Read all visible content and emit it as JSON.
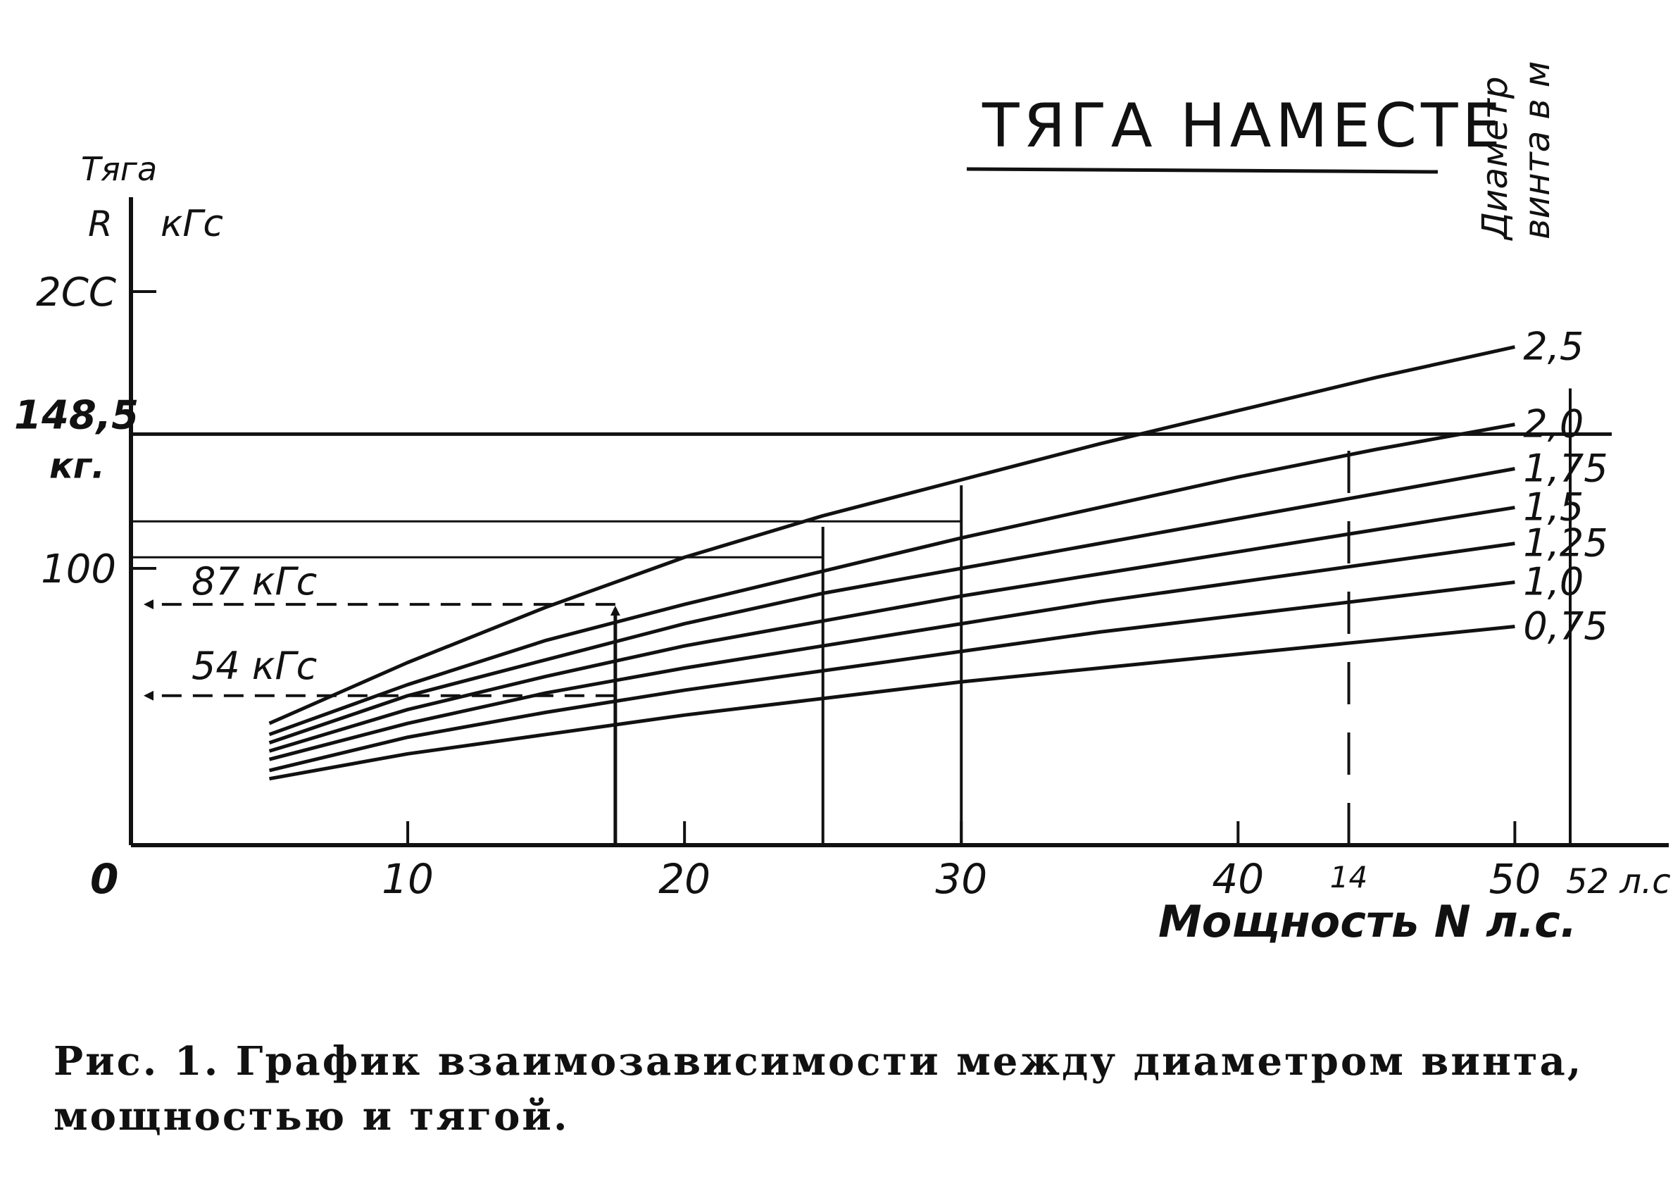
{
  "chart_data": {
    "type": "line",
    "title": "ТЯГА НАМЕСТЕ",
    "y_axis": {
      "label_line1": "Тяга",
      "label_r": "R",
      "unit": "кГс",
      "range": [
        0,
        200
      ],
      "ticks": [
        {
          "value": 100,
          "label": "100"
        },
        {
          "value": 200,
          "label": "2СС"
        }
      ]
    },
    "x_axis": {
      "label": "Мощность N л.с.",
      "range": [
        0,
        52
      ],
      "origin_label": "0",
      "ticks": [
        {
          "value": 10,
          "label": "10"
        },
        {
          "value": 20,
          "label": "20"
        },
        {
          "value": 30,
          "label": "30"
        },
        {
          "value": 40,
          "label": "40"
        },
        {
          "value": 50,
          "label": "50"
        },
        {
          "value": 52,
          "label": "52 л.с"
        }
      ],
      "extra_label": {
        "value": 44,
        "label": "14"
      }
    },
    "legend_title": [
      "Диаметр",
      "винта в м"
    ],
    "series": [
      {
        "name": "2,5",
        "x": [
          5,
          10,
          15,
          20,
          25,
          30,
          35,
          40,
          45,
          50
        ],
        "y": [
          44,
          66,
          86,
          104,
          119,
          132,
          145,
          157,
          169,
          180
        ]
      },
      {
        "name": "2,0",
        "x": [
          5,
          10,
          15,
          20,
          25,
          30,
          35,
          40,
          45,
          50
        ],
        "y": [
          40,
          58,
          74,
          87,
          99,
          111,
          122,
          133,
          143,
          152
        ]
      },
      {
        "name": "1,75",
        "x": [
          5,
          10,
          15,
          20,
          25,
          30,
          35,
          40,
          45,
          50
        ],
        "y": [
          37,
          54,
          67,
          80,
          91,
          100,
          109,
          118,
          127,
          136
        ]
      },
      {
        "name": "1,5",
        "x": [
          5,
          10,
          15,
          20,
          25,
          30,
          35,
          40,
          45,
          50
        ],
        "y": [
          34,
          49,
          61,
          72,
          81,
          90,
          98,
          106,
          114,
          122
        ]
      },
      {
        "name": "1,25",
        "x": [
          5,
          10,
          15,
          20,
          25,
          30,
          35,
          40,
          45,
          50
        ],
        "y": [
          31,
          44,
          55,
          64,
          72,
          80,
          88,
          95,
          102,
          109
        ]
      },
      {
        "name": "1,0",
        "x": [
          5,
          10,
          15,
          20,
          25,
          30,
          35,
          40,
          45,
          50
        ],
        "y": [
          27,
          39,
          48,
          56,
          63,
          70,
          77,
          83,
          89,
          95
        ]
      },
      {
        "name": "0,75",
        "x": [
          5,
          10,
          15,
          20,
          25,
          30,
          35,
          40,
          45,
          50
        ],
        "y": [
          24,
          33,
          40,
          47,
          53,
          59,
          64,
          69,
          74,
          79
        ]
      }
    ],
    "reference_lines": [
      {
        "type": "horizontal",
        "y": 148.5,
        "label_value": "148,5",
        "label_unit": "кг."
      },
      {
        "type": "horizontal",
        "y": 117,
        "label": ""
      },
      {
        "type": "horizontal",
        "y": 104,
        "label": ""
      },
      {
        "type": "horizontal_dashed_arrow",
        "y": 87,
        "from_x": 17.5,
        "label": "87 кГс"
      },
      {
        "type": "horizontal_dashed_arrow",
        "y": 54,
        "from_x": 17.5,
        "label": "54 кГс"
      },
      {
        "type": "vertical_arrow",
        "x": 17.5,
        "y_to": 87
      },
      {
        "type": "vertical",
        "x": 25,
        "y_to": 115
      },
      {
        "type": "vertical",
        "x": 30,
        "y_to": 130
      },
      {
        "type": "vertical_dashed",
        "x": 44,
        "y_to": 150
      },
      {
        "type": "vertical",
        "x": 52,
        "y_to": 165
      }
    ],
    "grid": false
  },
  "caption": {
    "line1": "Рис. 1. График взаимозависимости между диаметром винта,",
    "line2": "мощностью и тягой."
  }
}
